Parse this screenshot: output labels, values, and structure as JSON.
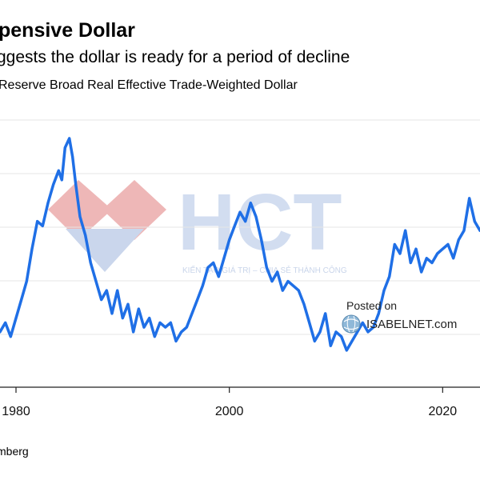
{
  "header": {
    "title": "pensive Dollar",
    "subtitle": "ggests the dollar is ready for a period of decline",
    "series_label": "Reserve Broad Real Effective Trade-Weighted Dollar"
  },
  "footer": {
    "source": "mberg"
  },
  "watermark": {
    "logo_text": "HCT",
    "tagline": "KIẾN TẠO GIÁ TRỊ – CHIA SẺ THÀNH CÔNG",
    "posted_on": "Posted on",
    "site": "ISABELNET.com"
  },
  "colors": {
    "line": "#1f6fe6",
    "grid": "#e6e6e6",
    "axis": "#222222",
    "watermark_red": "#e9a0a0",
    "watermark_blue": "#b9c9e6"
  },
  "chart_data": {
    "type": "line",
    "x_ticks": [
      "1980",
      "2000",
      "2020"
    ],
    "x_tick_values": [
      1980,
      2000,
      2020
    ],
    "xlim": [
      1978.5,
      2023.5
    ],
    "ylim": [
      78,
      136
    ],
    "grid": true,
    "series": [
      {
        "x": [
          1978.5,
          1979,
          1979.5,
          1980,
          1980.5,
          1981,
          1981.5,
          1982,
          1982.5,
          1983,
          1983.5,
          1984,
          1984.3,
          1984.6,
          1985,
          1985.3,
          1985.6,
          1986,
          1986.5,
          1987,
          1987.5,
          1988,
          1988.5,
          1989,
          1989.5,
          1990,
          1990.5,
          1991,
          1991.5,
          1992,
          1992.5,
          1993,
          1993.5,
          1994,
          1994.5,
          1995,
          1995.5,
          1996,
          1996.5,
          1997,
          1997.5,
          1998,
          1998.5,
          1999,
          1999.5,
          2000,
          2000.5,
          2001,
          2001.5,
          2002,
          2002.5,
          2003,
          2003.5,
          2004,
          2004.5,
          2005,
          2005.5,
          2006,
          2006.5,
          2007,
          2007.5,
          2008,
          2008.5,
          2009,
          2009.5,
          2010,
          2010.5,
          2011,
          2011.5,
          2012,
          2012.5,
          2013,
          2013.5,
          2014,
          2014.5,
          2015,
          2015.5,
          2016,
          2016.5,
          2017,
          2017.5,
          2018,
          2018.5,
          2019,
          2019.5,
          2020,
          2020.5,
          2021,
          2021.5,
          2022,
          2022.5,
          2023,
          2023.5
        ],
        "y": [
          90,
          92,
          89,
          93,
          97,
          101,
          108,
          114,
          113,
          118,
          122,
          125,
          123,
          130,
          132,
          128,
          122,
          115,
          111,
          105,
          101,
          97,
          99,
          94,
          99,
          93,
          96,
          90,
          95,
          91,
          93,
          89,
          92,
          91,
          92,
          88,
          90,
          91,
          94,
          97,
          100,
          104,
          105,
          102,
          106,
          110,
          113,
          116,
          114,
          118,
          115,
          110,
          104,
          101,
          103,
          99,
          101,
          100,
          99,
          96,
          92,
          88,
          90,
          94,
          87,
          90,
          89,
          86,
          88,
          90,
          92,
          90,
          91,
          94,
          99,
          102,
          109,
          107,
          112,
          105,
          108,
          103,
          106,
          105,
          107,
          108,
          109,
          106,
          110,
          112,
          119,
          114,
          112
        ]
      }
    ]
  }
}
